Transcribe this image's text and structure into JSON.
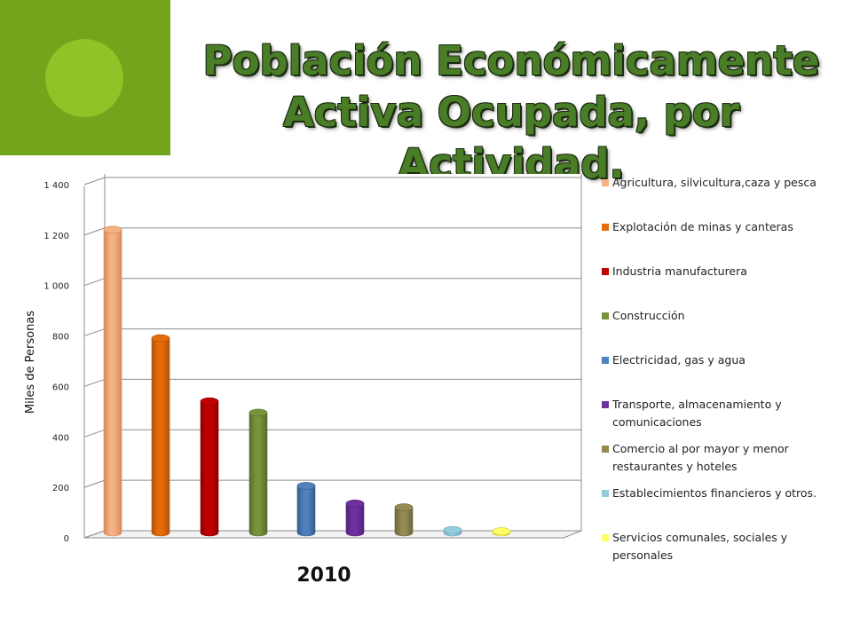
{
  "slide": {
    "title_line1": "Población Económicamente",
    "title_line2": "Activa Ocupada, por Actividad.",
    "accent_color": "#72a51b",
    "accent_light": "#8fc327"
  },
  "chart_data": {
    "type": "bar",
    "title": "",
    "xlabel": "2010",
    "ylabel": "Miles de Personas",
    "ylim": [
      0,
      1400
    ],
    "yticks": [
      "0",
      "200",
      "400",
      "600",
      "800",
      "1 000",
      "1 200",
      "1 400"
    ],
    "ytick_values": [
      0,
      200,
      400,
      600,
      800,
      1000,
      1200,
      1400
    ],
    "categories": [
      "2010"
    ],
    "legend_position": "right",
    "grid": true,
    "series": [
      {
        "name": "Agricultura, silvicultura,caza y pesca",
        "values": [
          1200
        ],
        "color": "#f4b183",
        "dark": "#d9895a"
      },
      {
        "name": "Explotación de minas y canteras",
        "values": [
          770
        ],
        "color": "#e46c0a",
        "dark": "#b4530a"
      },
      {
        "name": "Industria manufacturera",
        "values": [
          520
        ],
        "color": "#c00000",
        "dark": "#8c0000"
      },
      {
        "name": "Construcción",
        "values": [
          475
        ],
        "color": "#77933c",
        "dark": "#566d2a"
      },
      {
        "name": "Electricidad, gas y agua",
        "values": [
          185
        ],
        "color": "#4f81bd",
        "dark": "#355d8e"
      },
      {
        "name": "Transporte, almacenamiento y comunicaciones",
        "values": [
          115
        ],
        "color": "#7030a0",
        "dark": "#512277"
      },
      {
        "name": "Comercio al por mayor y menor restaurantes y hoteles",
        "values": [
          100
        ],
        "color": "#948a54",
        "dark": "#6e663c"
      },
      {
        "name": "Establecimientos financieros y otros.",
        "values": [
          10
        ],
        "color": "#93cddd",
        "dark": "#6fabbd"
      },
      {
        "name": "Servicios comunales, sociales y personales",
        "values": [
          5
        ],
        "color": "#ffff66",
        "dark": "#cccc33"
      }
    ]
  }
}
